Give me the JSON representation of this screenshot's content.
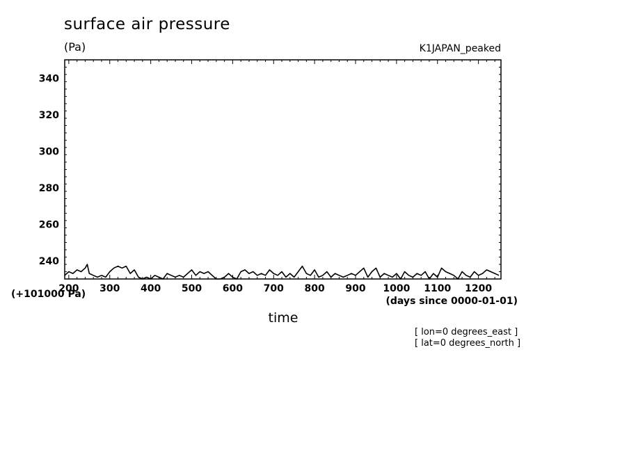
{
  "chart_data": {
    "type": "line",
    "title": "surface air pressure",
    "units": "(Pa)",
    "run_label": "K1JAPAN_peaked",
    "xlabel": "time",
    "x_units": "(days since 0000-01-01)",
    "y_offset_label": "(+101000 Pa)",
    "annotations": [
      "[ lon=0 degrees_east ]",
      "[ lat=0 degrees_north ]"
    ],
    "xlim": [
      190,
      1255
    ],
    "ylim": [
      230,
      350
    ],
    "x_ticks": [
      200,
      300,
      400,
      500,
      600,
      700,
      800,
      900,
      1000,
      1100,
      1200
    ],
    "y_ticks": [
      240,
      260,
      280,
      300,
      320,
      340
    ],
    "grid": false,
    "series": [
      {
        "x": [
          190,
          200,
          210,
          220,
          230,
          240,
          245,
          250,
          260,
          270,
          280,
          290,
          300,
          310,
          320,
          330,
          340,
          350,
          360,
          370,
          380,
          390,
          400,
          410,
          420,
          430,
          440,
          450,
          460,
          470,
          480,
          490,
          500,
          510,
          520,
          530,
          540,
          550,
          560,
          570,
          580,
          590,
          600,
          610,
          620,
          630,
          640,
          650,
          660,
          670,
          680,
          690,
          700,
          710,
          720,
          730,
          740,
          750,
          760,
          770,
          780,
          790,
          800,
          810,
          820,
          830,
          840,
          850,
          860,
          870,
          880,
          890,
          900,
          910,
          920,
          930,
          940,
          950,
          960,
          970,
          980,
          990,
          1000,
          1010,
          1020,
          1030,
          1040,
          1050,
          1060,
          1070,
          1080,
          1090,
          1100,
          1110,
          1120,
          1130,
          1140,
          1150,
          1160,
          1170,
          1180,
          1190,
          1200,
          1210,
          1220,
          1230,
          1240,
          1250
        ],
        "values": [
          232,
          234,
          233,
          235,
          234,
          236,
          238,
          233,
          232,
          231,
          232,
          231,
          234,
          236,
          237,
          236,
          237,
          233,
          235,
          231,
          230,
          231,
          230,
          232,
          231,
          230,
          233,
          232,
          231,
          232,
          231,
          233,
          235,
          232,
          234,
          233,
          234,
          232,
          230,
          230,
          231,
          233,
          231,
          230,
          234,
          235,
          233,
          234,
          232,
          233,
          232,
          235,
          233,
          232,
          234,
          231,
          233,
          231,
          234,
          237,
          233,
          232,
          235,
          231,
          232,
          234,
          231,
          233,
          232,
          231,
          232,
          233,
          232,
          234,
          236,
          231,
          234,
          236,
          231,
          233,
          232,
          231,
          233,
          230,
          234,
          232,
          231,
          233,
          232,
          234,
          230,
          233,
          231,
          236,
          234,
          233,
          232,
          230,
          234,
          232,
          231,
          234,
          232,
          233,
          235,
          234,
          233,
          232
        ]
      }
    ]
  }
}
